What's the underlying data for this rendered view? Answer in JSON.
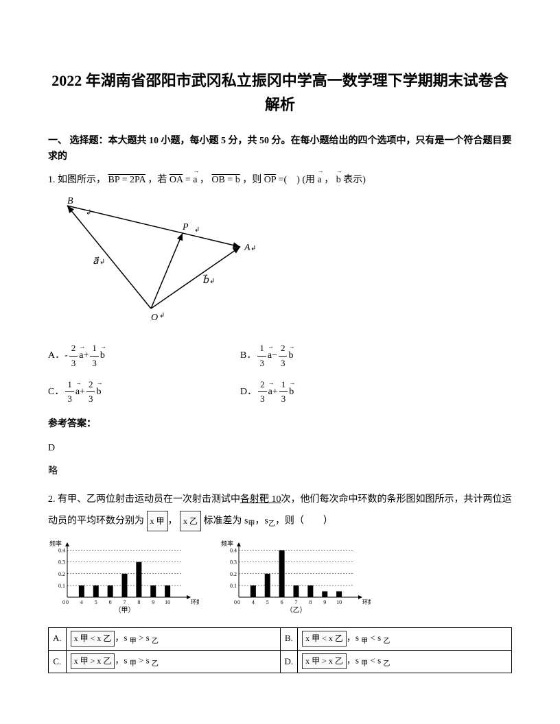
{
  "title": "2022 年湖南省邵阳市武冈私立振冈中学高一数学理下学期期末试卷含解析",
  "section1": {
    "header": "一、 选择题：本大题共 10 小题，每小题 5 分，共 50 分。在每小题给出的四个选项中，只有是一个符合题目要求的"
  },
  "q1": {
    "prefix": "1. 如图所示，",
    "eq1": "BP = 2PA",
    "mid1": "，若",
    "eq2": "OA",
    "mid2": " = ",
    "var_a": "a",
    "mid3": "，",
    "eq3": "OB = b",
    "mid4": "，则",
    "eq4": "OP",
    "mid5": " =(　) (用 ",
    "mid6": "，",
    "mid7": " 表示)",
    "triangle": {
      "labels": {
        "B": "B",
        "P": "P",
        "A": "A",
        "O": "O",
        "a": "a",
        "b": "b"
      },
      "points": {
        "O": [
          150,
          165
        ],
        "B": [
          28,
          15
        ],
        "A": [
          280,
          75
        ],
        "P": [
          196,
          55
        ]
      },
      "stroke": "#000000"
    },
    "options": {
      "A": {
        "label": "A．",
        "neg": "-",
        "n1": "2",
        "d1": "3",
        "v1": "a",
        "op": "+",
        "n2": "1",
        "d2": "3",
        "v2": "b"
      },
      "B": {
        "label": "B．",
        "n1": "1",
        "d1": "3",
        "v1": "a",
        "op": "−",
        "n2": "2",
        "d2": "3",
        "v2": "b"
      },
      "C": {
        "label": "C．",
        "n1": "1",
        "d1": "3",
        "v1": "a",
        "op": "+",
        "n2": "2",
        "d2": "3",
        "v2": "b"
      },
      "D": {
        "label": "D．",
        "n1": "2",
        "d1": "3",
        "v1": "a",
        "op": "+",
        "n2": "1",
        "d2": "3",
        "v2": "b"
      }
    },
    "answer_label": "参考答案：",
    "answer": "D",
    "brief": "略"
  },
  "q2": {
    "text1": "2. 有甲、乙两位射击运动员在一次射击测试中",
    "ul1": "各射靶 10",
    "text2": "次，他们每次命中环数的条形图如图所示，共计两位运动员的平均环数分别为",
    "var_x1": "x 甲",
    "mid1": "，",
    "var_x2": "x 乙",
    "text3": "标准差为 s",
    "sub1": "甲",
    "mid2": "，s",
    "sub2": "乙",
    "text4": "，则（　　）",
    "chart1": {
      "ylabel": "频率",
      "xlabel": "环数",
      "caption": "（甲）",
      "yticks": [
        "0.1",
        "0.2",
        "0.3",
        "0.4"
      ],
      "xticks": [
        "0",
        "4",
        "5",
        "6",
        "7",
        "8",
        "9",
        "10"
      ],
      "bars": [
        {
          "x": 4,
          "h": 0.1
        },
        {
          "x": 5,
          "h": 0.1
        },
        {
          "x": 6,
          "h": 0.1
        },
        {
          "x": 7,
          "h": 0.2
        },
        {
          "x": 8,
          "h": 0.3
        },
        {
          "x": 9,
          "h": 0.1
        },
        {
          "x": 10,
          "h": 0.1
        }
      ],
      "bar_color": "#000000",
      "grid_dash": "2,2"
    },
    "chart2": {
      "ylabel": "频率",
      "xlabel": "环数",
      "caption": "（乙）",
      "yticks": [
        "0.1",
        "0.2",
        "0.3",
        "0.4"
      ],
      "xticks": [
        "0",
        "4",
        "5",
        "6",
        "7",
        "8",
        "9",
        "10"
      ],
      "bars": [
        {
          "x": 4,
          "h": 0.1
        },
        {
          "x": 5,
          "h": 0.2
        },
        {
          "x": 6,
          "h": 0.4
        },
        {
          "x": 7,
          "h": 0.1
        },
        {
          "x": 8,
          "h": 0.1
        },
        {
          "x": 9,
          "h": 0.05
        },
        {
          "x": 10,
          "h": 0.05
        }
      ],
      "bar_color": "#000000",
      "grid_dash": "2,2"
    },
    "table": {
      "rows": [
        [
          {
            "label": "A.",
            "rel1": "<",
            "srel": ">",
            "s1": "甲",
            "s2": "乙"
          },
          {
            "label": "B.",
            "rel1": "<",
            "srel": "<",
            "s1": "甲",
            "s2": "乙"
          }
        ],
        [
          {
            "label": "C.",
            "rel1": ">",
            "srel": ">",
            "s1": "甲",
            "s2": "乙"
          },
          {
            "label": "D.",
            "rel1": ">",
            "srel": "<",
            "s1": "甲",
            "s2": "乙"
          }
        ]
      ]
    }
  }
}
